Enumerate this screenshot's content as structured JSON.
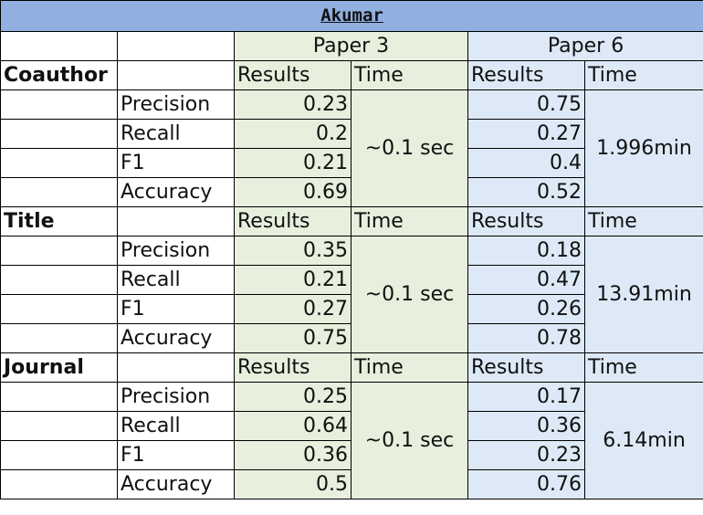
{
  "title": "Akumar",
  "paper_headers": [
    "Paper 3",
    "Paper 6"
  ],
  "col_results": "Results",
  "col_time": "Time",
  "sections": [
    {
      "name": "Coauthor",
      "rows": [
        {
          "metric": "Precision",
          "p3": "0.23",
          "p6": "0.75"
        },
        {
          "metric": "Recall",
          "p3": "0.2",
          "p6": "0.27"
        },
        {
          "metric": "F1",
          "p3": "0.21",
          "p6": "0.4"
        },
        {
          "metric": "Accuracy",
          "p3": "0.69",
          "p6": "0.52"
        }
      ],
      "time_p3": "~0.1 sec",
      "time_p6": "1.996min"
    },
    {
      "name": "Title",
      "rows": [
        {
          "metric": "Precision",
          "p3": "0.35",
          "p6": "0.18"
        },
        {
          "metric": "Recall",
          "p3": "0.21",
          "p6": "0.47"
        },
        {
          "metric": "F1",
          "p3": "0.27",
          "p6": "0.26"
        },
        {
          "metric": "Accuracy",
          "p3": "0.75",
          "p6": "0.78"
        }
      ],
      "time_p3": "~0.1 sec",
      "time_p6": "13.91min"
    },
    {
      "name": "Journal",
      "rows": [
        {
          "metric": "Precision",
          "p3": "0.25",
          "p6": "0.17"
        },
        {
          "metric": "Recall",
          "p3": "0.64",
          "p6": "0.36"
        },
        {
          "metric": "F1",
          "p3": "0.36",
          "p6": "0.23"
        },
        {
          "metric": "Accuracy",
          "p3": "0.5",
          "p6": "0.76"
        }
      ],
      "time_p3": "~0.1 sec",
      "time_p6": "6.14min"
    }
  ],
  "colors": {
    "title_bg": "#8fb0e0",
    "paper3_bg": "#e6f0dc",
    "paper6_bg": "#dde9f6"
  }
}
